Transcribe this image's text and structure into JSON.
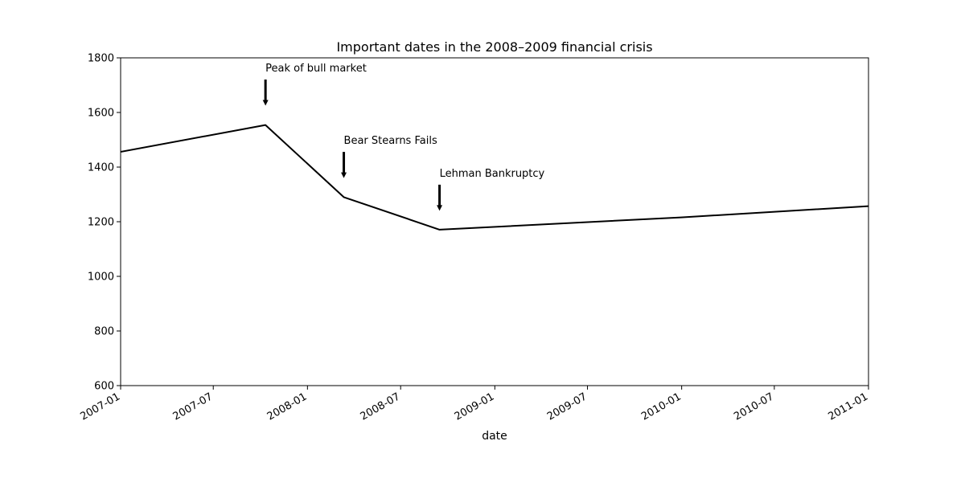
{
  "chart_data": {
    "type": "line",
    "title": "Important dates in the 2008–2009 financial crisis",
    "xlabel": "date",
    "ylabel": "",
    "xlim": [
      "2007-01-01",
      "2011-01-01"
    ],
    "ylim": [
      600,
      1800
    ],
    "x_ticks": [
      "2007-01",
      "2007-07",
      "2008-01",
      "2008-07",
      "2009-01",
      "2009-07",
      "2010-01",
      "2010-07",
      "2011-01"
    ],
    "y_ticks": [
      600,
      800,
      1000,
      1200,
      1400,
      1600,
      1800
    ],
    "grid": false,
    "line_color": "#000000",
    "series": [
      {
        "x": [
          "2006-12-01",
          "2007-10-11",
          "2008-03-12",
          "2008-09-15",
          "2009-12-31",
          "2011-01-01"
        ],
        "y": [
          1445,
          1554,
          1290,
          1171,
          1216,
          1257
        ]
      }
    ],
    "annotations": [
      {
        "text": "Peak of bull market",
        "x": "2007-10-11",
        "y_text": 1750,
        "y_arrow": 1625
      },
      {
        "text": "Bear Stearns Fails",
        "x": "2008-03-12",
        "y_text": 1485,
        "y_arrow": 1360
      },
      {
        "text": "Lehman Bankruptcy",
        "x": "2008-09-15",
        "y_text": 1365,
        "y_arrow": 1240
      }
    ]
  }
}
